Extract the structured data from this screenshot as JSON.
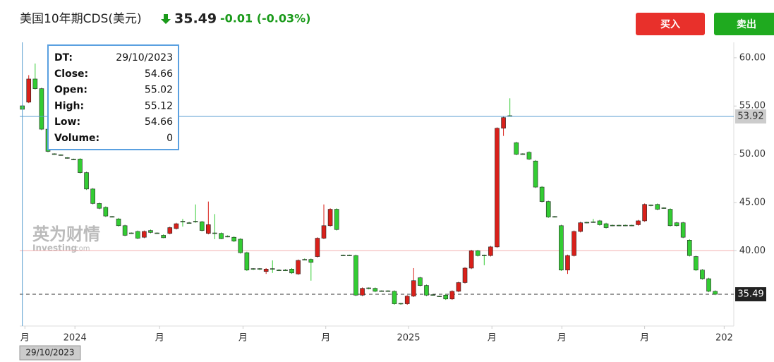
{
  "header": {
    "title": "美国10年期CDS(美元)",
    "price": "35.49",
    "change": "-0.01 (-0.03%)"
  },
  "buttons": {
    "buy": "买入",
    "sell": "卖出"
  },
  "watermark": {
    "brand": "英为财情",
    "site": "Investing",
    "domain": ".com"
  },
  "tooltip": {
    "rows": [
      [
        "DT:",
        "29/10/2023"
      ],
      [
        "Close:",
        "54.66"
      ],
      [
        "Open:",
        "55.02"
      ],
      [
        "High:",
        "55.12"
      ],
      [
        "Low:",
        "54.66"
      ],
      [
        "Volume:",
        "0"
      ]
    ]
  },
  "chart_data": {
    "type": "candlestick",
    "up_color": "#d9201a",
    "down_color": "#33cc33",
    "xlim": [
      -0.4,
      110.9
    ],
    "xticks": [
      {
        "value": 0.4,
        "label": "月"
      },
      {
        "value": 8.2,
        "label": "2024"
      },
      {
        "value": 21.4,
        "label": "月"
      },
      {
        "value": 34.4,
        "label": "月"
      },
      {
        "value": 47.3,
        "label": "月"
      },
      {
        "value": 60.2,
        "label": "2025"
      },
      {
        "value": 73.2,
        "label": "月"
      },
      {
        "value": 84.1,
        "label": "月"
      },
      {
        "value": 97,
        "label": "月"
      },
      {
        "value": 109.4,
        "label": "202"
      }
    ],
    "ylim": [
      32.2,
      61.6
    ],
    "yticks": [
      {
        "value": 40,
        "label": "40.00"
      },
      {
        "value": 45,
        "label": "45.00"
      },
      {
        "value": 50,
        "label": "50.00"
      },
      {
        "value": 55,
        "label": "55.00"
      },
      {
        "value": 60,
        "label": "60.00"
      }
    ],
    "reference_line": 40,
    "crosshair": {
      "value": 53.92,
      "label": "53.92",
      "date": "29/10/2023"
    },
    "last_price": {
      "value": 35.49,
      "label": "35.49"
    },
    "open": [
      55.02,
      55.4,
      57.8,
      56.8,
      52.6,
      50.05,
      49.95,
      49.65,
      49.5,
      49.5,
      48.1,
      46.4,
      44.9,
      44.5,
      43.55,
      43.3,
      42.6,
      41.85,
      42.0,
      41.4,
      42.1,
      41.85,
      41.6,
      41.8,
      42.3,
      43.05,
      42.9,
      43.05,
      43.0,
      41.8,
      41.85,
      41.8,
      41.5,
      41.4,
      41.2,
      39.8,
      38.15,
      38.15,
      37.85,
      38.15,
      38.0,
      38.0,
      38.1,
      37.6,
      39.1,
      39.1,
      39.4,
      41.3,
      42.6,
      44.3,
      39.55,
      39.55,
      39.5,
      35.4,
      36.15,
      36.1,
      35.85,
      35.85,
      35.8,
      34.55,
      34.5,
      35.3,
      37.2,
      36.4,
      35.45,
      35.3,
      35.4,
      35.0,
      35.8,
      36.7,
      38.2,
      40.0,
      39.55,
      39.5,
      40.4,
      52.7,
      54.0,
      51.2,
      50.05,
      50.2,
      49.3,
      46.6,
      45.1,
      43.55,
      42.6,
      38.0,
      39.5,
      42.0,
      42.95,
      43.0,
      43.1,
      42.8,
      42.65,
      42.65,
      42.65,
      42.65,
      42.7,
      43.1,
      44.75,
      44.8,
      44.45,
      44.3,
      42.9,
      42.9,
      41.1,
      39.4,
      38.0,
      37.1,
      35.8
    ],
    "high": [
      55.12,
      58.2,
      59.4,
      56.9,
      52.7,
      50.1,
      50.0,
      49.7,
      49.55,
      49.6,
      48.2,
      46.5,
      45.0,
      44.6,
      43.6,
      43.4,
      42.7,
      41.9,
      42.1,
      42.1,
      42.2,
      41.9,
      41.7,
      42.5,
      42.9,
      43.3,
      43.0,
      44.8,
      43.1,
      45.1,
      43.8,
      41.9,
      41.6,
      41.5,
      41.3,
      39.9,
      38.2,
      38.2,
      38.2,
      39.0,
      38.1,
      38.1,
      38.2,
      39.1,
      39.2,
      39.2,
      41.4,
      44.8,
      44.4,
      44.4,
      39.6,
      39.6,
      39.6,
      36.2,
      36.2,
      36.2,
      35.9,
      35.9,
      35.9,
      34.6,
      35.4,
      38.2,
      37.3,
      36.5,
      35.5,
      35.35,
      35.5,
      35.9,
      36.8,
      38.3,
      40.1,
      40.1,
      39.6,
      40.5,
      52.8,
      53.9,
      55.8,
      51.3,
      50.1,
      50.3,
      49.4,
      46.7,
      45.2,
      43.6,
      42.7,
      39.6,
      42.1,
      43.0,
      43.0,
      43.3,
      43.2,
      42.9,
      42.7,
      42.7,
      42.7,
      42.7,
      43.2,
      44.9,
      44.8,
      44.9,
      44.5,
      44.4,
      43.0,
      43.0,
      41.2,
      39.5,
      38.1,
      37.2,
      35.9
    ],
    "low": [
      54.66,
      55.3,
      56.7,
      52.5,
      50.2,
      49.95,
      49.85,
      49.55,
      49.4,
      48.0,
      46.3,
      44.8,
      44.3,
      43.5,
      43.45,
      42.5,
      41.5,
      41.75,
      41.2,
      41.3,
      41.8,
      41.75,
      41.3,
      41.7,
      42.2,
      42.5,
      42.8,
      42.9,
      42.0,
      41.7,
      41.2,
      41.2,
      41.4,
      40.9,
      39.7,
      37.9,
      38.0,
      38.0,
      37.6,
      37.7,
      37.9,
      37.9,
      37.6,
      37.5,
      39.0,
      36.9,
      39.3,
      41.2,
      42.5,
      42.1,
      39.45,
      39.45,
      35.3,
      35.3,
      36.0,
      35.7,
      35.75,
      35.75,
      34.4,
      34.4,
      34.4,
      35.2,
      36.3,
      35.3,
      35.35,
      35.2,
      34.9,
      34.9,
      35.7,
      36.6,
      38.1,
      39.4,
      38.5,
      39.4,
      40.3,
      51.9,
      53.9,
      49.9,
      49.95,
      49.4,
      46.5,
      45.0,
      43.4,
      43.45,
      37.9,
      37.6,
      39.4,
      41.9,
      42.85,
      42.9,
      42.6,
      42.3,
      42.55,
      42.55,
      42.55,
      42.55,
      42.6,
      43.0,
      44.6,
      44.2,
      44.35,
      42.5,
      42.5,
      41.3,
      39.4,
      37.9,
      37.0,
      35.7,
      35.4
    ],
    "close": [
      54.66,
      57.8,
      56.8,
      52.6,
      50.3,
      50.0,
      49.9,
      49.6,
      49.45,
      48.1,
      46.4,
      44.9,
      44.4,
      43.6,
      43.5,
      42.6,
      41.6,
      41.8,
      41.3,
      42.0,
      41.9,
      41.8,
      41.35,
      42.4,
      42.8,
      43.0,
      42.85,
      43.0,
      42.1,
      42.7,
      41.8,
      41.25,
      41.45,
      41.0,
      39.8,
      38.0,
      38.1,
      38.1,
      38.1,
      38.1,
      37.95,
      37.95,
      37.7,
      39.0,
      39.05,
      38.8,
      41.3,
      42.6,
      44.3,
      42.2,
      39.5,
      39.5,
      35.4,
      36.1,
      36.1,
      35.8,
      35.8,
      35.8,
      34.5,
      34.5,
      35.3,
      36.9,
      36.4,
      35.4,
      35.4,
      35.25,
      35.0,
      35.8,
      36.7,
      38.2,
      40.0,
      39.5,
      39.5,
      40.4,
      52.7,
      53.8,
      53.95,
      50.0,
      50.0,
      49.5,
      46.6,
      45.1,
      43.5,
      43.5,
      38.0,
      39.5,
      42.0,
      42.9,
      42.9,
      42.95,
      42.7,
      42.4,
      42.6,
      42.6,
      42.6,
      42.6,
      43.1,
      44.8,
      44.7,
      44.3,
      44.4,
      42.6,
      42.6,
      41.4,
      39.5,
      38.0,
      37.1,
      35.8,
      35.49
    ]
  }
}
